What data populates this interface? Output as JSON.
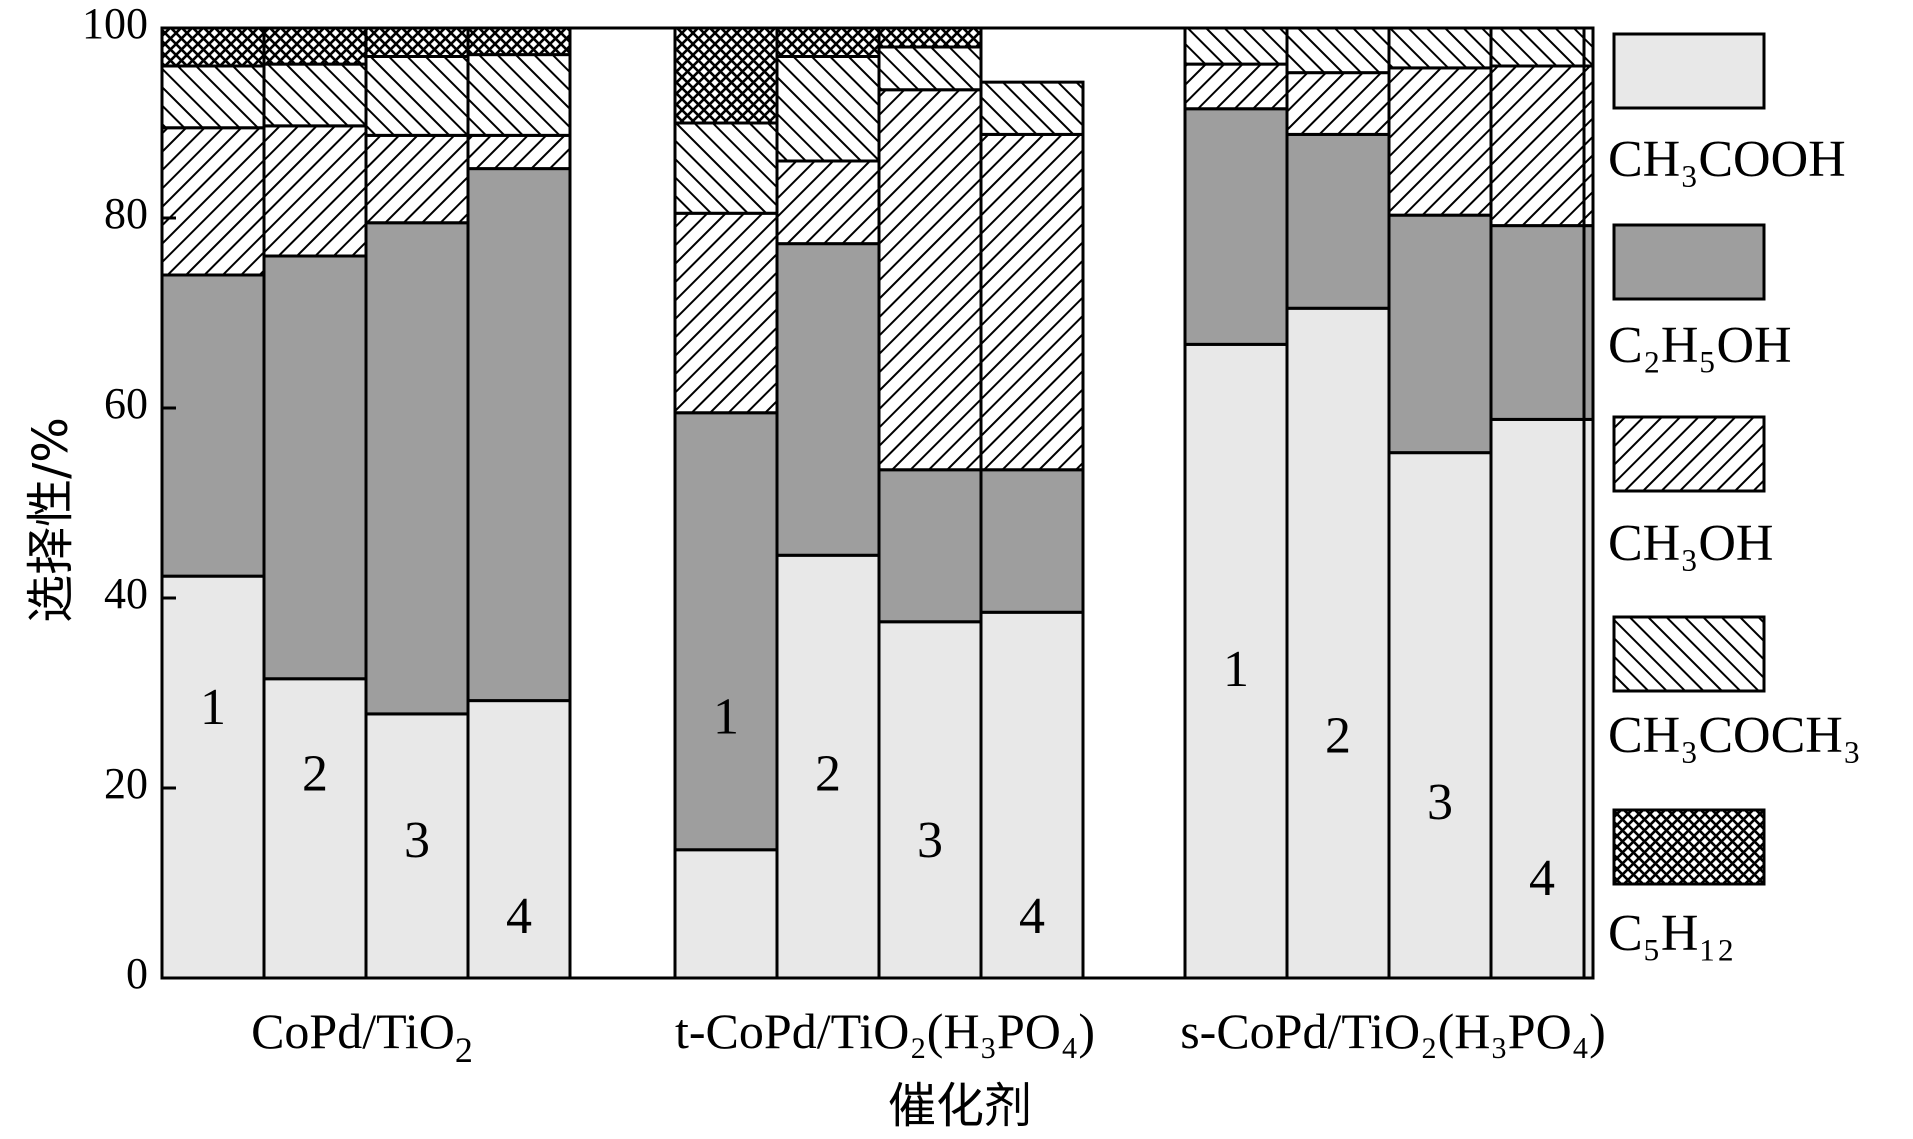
{
  "chart_data": {
    "type": "bar",
    "stacked": true,
    "ylabel": "选择性/%",
    "xlabel": "催化剂",
    "ylim": [
      0,
      100
    ],
    "yticks": [
      0,
      20,
      40,
      60,
      80,
      100
    ],
    "groups": [
      {
        "name": "CoPd/TiO",
        "sub": "2",
        "bars": [
          "1",
          "2",
          "3",
          "4"
        ]
      },
      {
        "name": "t-CoPd/TiO₂(H₃PO₄)",
        "bars": [
          "1",
          "2",
          "3",
          "4"
        ]
      },
      {
        "name": "s-CoPd/TiO₂(H₃PO₄)",
        "bars": [
          "1",
          "2",
          "3",
          "4"
        ]
      }
    ],
    "series": [
      {
        "name": "CH₃COOH",
        "pattern": "light",
        "color": "#e8e8e8",
        "values": [
          42.3,
          31.5,
          27.8,
          29.2,
          13.5,
          44.5,
          37.5,
          38.5,
          66.7,
          70.5,
          55.3,
          58.8
        ]
      },
      {
        "name": "C₂H₅OH",
        "pattern": "dark",
        "color": "#9e9e9e",
        "values": [
          31.7,
          44.5,
          51.7,
          56.0,
          46.0,
          32.8,
          16.0,
          15.0,
          24.8,
          18.3,
          25.0,
          20.4
        ]
      },
      {
        "name": "CH₃OH",
        "pattern": "diag-right",
        "color": "#ffffff",
        "values": [
          15.5,
          13.7,
          9.2,
          3.5,
          21.0,
          8.7,
          40.0,
          35.3,
          4.7,
          6.5,
          15.5,
          16.8
        ]
      },
      {
        "name": "CH₃COCH₃",
        "pattern": "diag-left",
        "color": "#ffffff",
        "values": [
          6.5,
          6.5,
          8.3,
          8.5,
          9.5,
          11.0,
          4.5,
          5.5,
          3.8,
          4.7,
          4.2,
          4.0
        ]
      },
      {
        "name": "C₅H₁₂",
        "pattern": "cross",
        "color": "#ffffff",
        "values": [
          4.0,
          3.8,
          3.0,
          2.8,
          10.0,
          3.0,
          2.0,
          0,
          0,
          0,
          0,
          0
        ]
      }
    ],
    "bar_numbers": [
      "1",
      "2",
      "3",
      "4",
      "1",
      "2",
      "3",
      "4",
      "1",
      "2",
      "3",
      "4"
    ],
    "legend": [
      "CH₃COOH",
      "C₂H₅OH",
      "CH₃OH",
      "CH₃COCH₃",
      "C₅H₁₂"
    ]
  }
}
